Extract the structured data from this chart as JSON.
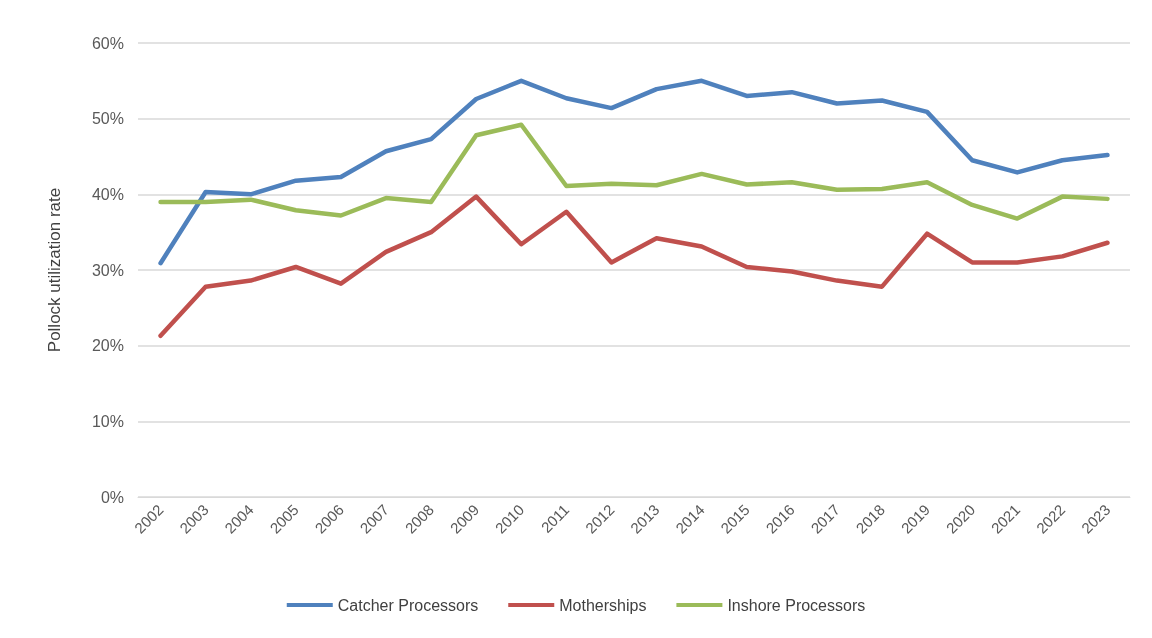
{
  "chart_data": {
    "type": "line",
    "ylabel": "Pollock utilization rate",
    "categories": [
      "2002",
      "2003",
      "2004",
      "2005",
      "2006",
      "2007",
      "2008",
      "2009",
      "2010",
      "2011",
      "2012",
      "2013",
      "2014",
      "2015",
      "2016",
      "2017",
      "2018",
      "2019",
      "2020",
      "2021",
      "2022",
      "2023"
    ],
    "series": [
      {
        "name": "Catcher Processors",
        "color": "#4f81bd",
        "values": [
          30.9,
          40.3,
          40.0,
          41.8,
          42.3,
          45.7,
          47.3,
          52.6,
          55.0,
          52.7,
          51.4,
          53.9,
          55.0,
          53.0,
          53.5,
          52.0,
          52.4,
          50.9,
          44.5,
          42.9,
          44.5,
          45.2
        ]
      },
      {
        "name": "Motherships",
        "color": "#c0504d",
        "values": [
          21.3,
          27.8,
          28.6,
          30.4,
          28.2,
          32.4,
          35.0,
          39.7,
          33.4,
          37.7,
          31.0,
          34.2,
          33.1,
          30.4,
          29.8,
          28.6,
          27.8,
          34.8,
          31.0,
          31.0,
          31.8,
          33.6
        ]
      },
      {
        "name": "Inshore Processors",
        "color": "#9bbb59",
        "values": [
          39.0,
          39.0,
          39.3,
          37.9,
          37.2,
          39.5,
          39.0,
          47.8,
          49.2,
          41.1,
          41.4,
          41.2,
          42.7,
          41.3,
          41.6,
          40.6,
          40.7,
          41.6,
          38.6,
          36.8,
          39.7,
          39.4
        ]
      }
    ],
    "ylim": [
      0,
      60
    ],
    "yticks": [
      {
        "value": 0,
        "label": "0%"
      },
      {
        "value": 10,
        "label": "10%"
      },
      {
        "value": 20,
        "label": "20%"
      },
      {
        "value": 30,
        "label": "30%"
      },
      {
        "value": 40,
        "label": "40%"
      },
      {
        "value": 50,
        "label": "50%"
      },
      {
        "value": 60,
        "label": "60%"
      }
    ],
    "grid": "y",
    "legend": "bottom",
    "marker": "none",
    "line_style": "solid"
  }
}
